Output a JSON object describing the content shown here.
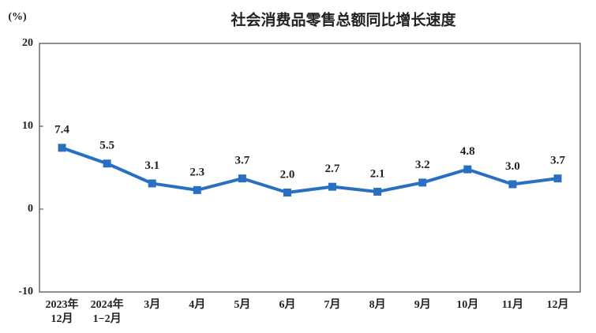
{
  "chart_data": {
    "type": "line",
    "title": "社会消费品零售总额同比增长速度",
    "y_label": "(%)",
    "categories": [
      "2023年\n12月",
      "2024年\n1−2月",
      "3月",
      "4月",
      "5月",
      "6月",
      "7月",
      "8月",
      "9月",
      "10月",
      "11月",
      "12月"
    ],
    "values": [
      7.4,
      5.5,
      3.1,
      2.3,
      3.7,
      2.0,
      2.7,
      2.1,
      3.2,
      4.8,
      3.0,
      3.7
    ],
    "value_labels": [
      "7.4",
      "5.5",
      "3.1",
      "2.3",
      "3.7",
      "2.0",
      "2.7",
      "2.1",
      "3.2",
      "4.8",
      "3.0",
      "3.7"
    ],
    "color": "#2a70c2",
    "ylim": [
      -10,
      20
    ],
    "yticks": [
      20,
      10,
      0,
      -10
    ],
    "grid": false
  }
}
